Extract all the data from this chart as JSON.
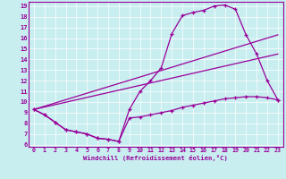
{
  "background_color": "#c8eef0",
  "line_color": "#990099",
  "xlim": [
    -0.5,
    23.5
  ],
  "ylim": [
    5.8,
    19.4
  ],
  "xticks": [
    0,
    1,
    2,
    3,
    4,
    5,
    6,
    7,
    8,
    9,
    10,
    11,
    12,
    13,
    14,
    15,
    16,
    17,
    18,
    19,
    20,
    21,
    22,
    23
  ],
  "yticks": [
    6,
    7,
    8,
    9,
    10,
    11,
    12,
    13,
    14,
    15,
    16,
    17,
    18,
    19
  ],
  "xlabel": "Windchill (Refroidissement éolien,°C)",
  "series_main": [
    [
      0,
      9.3
    ],
    [
      1,
      8.8
    ],
    [
      2,
      8.1
    ],
    [
      3,
      7.4
    ],
    [
      4,
      7.2
    ],
    [
      5,
      7.0
    ],
    [
      6,
      6.6
    ],
    [
      7,
      6.5
    ],
    [
      8,
      6.3
    ],
    [
      9,
      9.3
    ],
    [
      10,
      11.0
    ],
    [
      11,
      12.0
    ],
    [
      12,
      13.2
    ],
    [
      13,
      16.4
    ],
    [
      14,
      18.1
    ],
    [
      15,
      18.4
    ],
    [
      16,
      18.6
    ],
    [
      17,
      19.0
    ],
    [
      18,
      19.1
    ],
    [
      19,
      18.7
    ],
    [
      20,
      16.3
    ],
    [
      21,
      14.5
    ],
    [
      22,
      12.0
    ],
    [
      23,
      10.2
    ]
  ],
  "series_diag1": [
    [
      0,
      9.3
    ],
    [
      23,
      16.3
    ]
  ],
  "series_diag2": [
    [
      0,
      9.3
    ],
    [
      23,
      14.5
    ]
  ],
  "series_bottom": [
    [
      0,
      9.3
    ],
    [
      1,
      8.8
    ],
    [
      2,
      8.1
    ],
    [
      3,
      7.4
    ],
    [
      4,
      7.2
    ],
    [
      5,
      7.0
    ],
    [
      6,
      6.6
    ],
    [
      7,
      6.5
    ],
    [
      8,
      6.3
    ],
    [
      9,
      8.5
    ],
    [
      10,
      8.6
    ],
    [
      11,
      8.8
    ],
    [
      12,
      9.0
    ],
    [
      13,
      9.2
    ],
    [
      14,
      9.5
    ],
    [
      15,
      9.7
    ],
    [
      16,
      9.9
    ],
    [
      17,
      10.1
    ],
    [
      18,
      10.3
    ],
    [
      19,
      10.4
    ],
    [
      20,
      10.5
    ],
    [
      21,
      10.5
    ],
    [
      22,
      10.4
    ],
    [
      23,
      10.2
    ]
  ]
}
